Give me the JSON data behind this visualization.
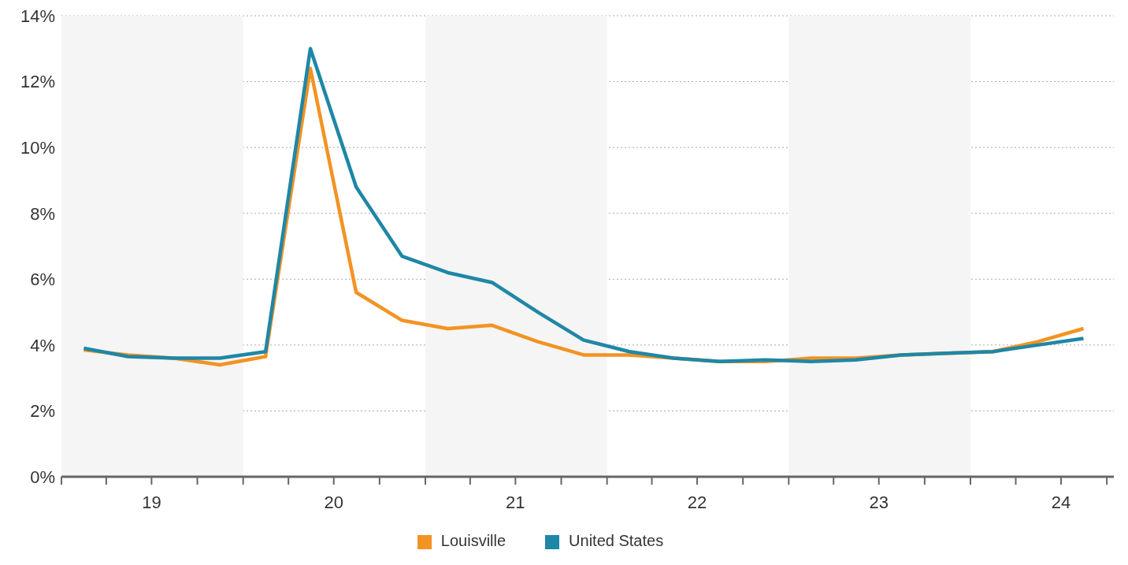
{
  "chart_data": {
    "type": "line",
    "x": [
      "2019-02-15",
      "2019-05-15",
      "2019-08-15",
      "2019-11-15",
      "2020-02-15",
      "2020-05-15",
      "2020-08-15",
      "2020-11-15",
      "2021-02-15",
      "2021-05-15",
      "2021-08-15",
      "2021-11-15",
      "2022-02-15",
      "2022-05-15",
      "2022-08-15",
      "2022-11-15",
      "2023-02-15",
      "2023-05-15",
      "2023-08-15",
      "2023-11-15",
      "2024-02-15",
      "2024-05-15",
      "2024-08-15"
    ],
    "series": [
      {
        "name": "Louisville",
        "color": "#f39323",
        "values": [
          3.85,
          3.7,
          3.6,
          3.4,
          3.65,
          12.4,
          5.6,
          4.75,
          4.5,
          4.6,
          4.1,
          3.7,
          3.7,
          3.6,
          3.5,
          3.5,
          3.6,
          3.6,
          3.7,
          3.75,
          3.8,
          4.1,
          4.5
        ]
      },
      {
        "name": "United States",
        "color": "#1f87a6",
        "values": [
          3.9,
          3.65,
          3.6,
          3.6,
          3.8,
          13.0,
          8.8,
          6.7,
          6.2,
          5.9,
          5.0,
          4.15,
          3.8,
          3.6,
          3.5,
          3.55,
          3.5,
          3.55,
          3.7,
          3.75,
          3.8,
          4.0,
          4.2
        ]
      }
    ],
    "xlim": [
      "2019-01-01",
      "2024-10-15"
    ],
    "xticks": [
      {
        "value": "2019-01-01",
        "label": null
      },
      {
        "value": "2019-04-01",
        "label": null
      },
      {
        "value": "2019-07-01",
        "label": "19"
      },
      {
        "value": "2019-10-01",
        "label": null
      },
      {
        "value": "2020-01-01",
        "label": null
      },
      {
        "value": "2020-04-01",
        "label": null
      },
      {
        "value": "2020-07-01",
        "label": "20"
      },
      {
        "value": "2020-10-01",
        "label": null
      },
      {
        "value": "2021-01-01",
        "label": null
      },
      {
        "value": "2021-04-01",
        "label": null
      },
      {
        "value": "2021-07-01",
        "label": "21"
      },
      {
        "value": "2021-10-01",
        "label": null
      },
      {
        "value": "2022-01-01",
        "label": null
      },
      {
        "value": "2022-04-01",
        "label": null
      },
      {
        "value": "2022-07-01",
        "label": "22"
      },
      {
        "value": "2022-10-01",
        "label": null
      },
      {
        "value": "2023-01-01",
        "label": null
      },
      {
        "value": "2023-04-01",
        "label": null
      },
      {
        "value": "2023-07-01",
        "label": "23"
      },
      {
        "value": "2023-10-01",
        "label": null
      },
      {
        "value": "2024-01-01",
        "label": null
      },
      {
        "value": "2024-04-01",
        "label": null
      },
      {
        "value": "2024-07-01",
        "label": "24"
      },
      {
        "value": "2024-10-01",
        "label": null
      }
    ],
    "ylim": [
      0,
      14
    ],
    "yticks": [
      {
        "value": 0,
        "label": "0%"
      },
      {
        "value": 2,
        "label": "2%"
      },
      {
        "value": 4,
        "label": "4%"
      },
      {
        "value": 6,
        "label": "6%"
      },
      {
        "value": 8,
        "label": "8%"
      },
      {
        "value": 10,
        "label": "10%"
      },
      {
        "value": 12,
        "label": "12%"
      },
      {
        "value": 14,
        "label": "14%"
      }
    ],
    "bands": [
      {
        "axis": "x",
        "from": "2019-01-01",
        "to": "2020-01-01",
        "color": "#f5f5f5"
      },
      {
        "axis": "x",
        "from": "2021-01-01",
        "to": "2022-01-01",
        "color": "#f5f5f5"
      },
      {
        "axis": "x",
        "from": "2023-01-01",
        "to": "2024-01-01",
        "color": "#f5f5f5"
      }
    ],
    "grid": "y",
    "legend": "bottom",
    "marker": "none",
    "line_style": "solid"
  }
}
